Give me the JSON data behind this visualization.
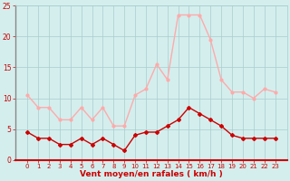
{
  "x": [
    0,
    1,
    2,
    3,
    4,
    5,
    6,
    7,
    8,
    9,
    10,
    11,
    12,
    13,
    14,
    15,
    16,
    17,
    18,
    19,
    20,
    21,
    22,
    23
  ],
  "rafales": [
    10.5,
    8.5,
    8.5,
    6.5,
    6.5,
    8.5,
    6.5,
    8.5,
    5.5,
    5.5,
    10.5,
    11.5,
    15.5,
    13.0,
    23.5,
    23.5,
    23.5,
    19.5,
    13.0,
    11.0,
    11.0,
    10.0,
    11.5,
    11.0
  ],
  "moyen": [
    4.5,
    3.5,
    3.5,
    2.5,
    2.5,
    3.5,
    2.5,
    3.5,
    2.5,
    1.5,
    4.0,
    4.5,
    4.5,
    5.5,
    6.5,
    8.5,
    7.5,
    6.5,
    5.5,
    4.0,
    3.5,
    3.5,
    3.5,
    3.5
  ],
  "color_rafales": "#ffaaaa",
  "color_moyen": "#cc0000",
  "bg_color": "#d4eeee",
  "grid_color": "#aacccc",
  "xlabel": "Vent moyen/en rafales ( km/h )",
  "xlabel_color": "#cc0000",
  "tick_color": "#cc0000",
  "ylim": [
    0,
    25
  ],
  "yticks": [
    0,
    5,
    10,
    15,
    20,
    25
  ],
  "xticks": [
    0,
    1,
    2,
    3,
    4,
    5,
    6,
    7,
    8,
    9,
    10,
    11,
    12,
    13,
    14,
    15,
    16,
    17,
    18,
    19,
    20,
    21,
    22,
    23
  ],
  "left_spine_color": "#888888",
  "bottom_spine_color": "#cc0000"
}
